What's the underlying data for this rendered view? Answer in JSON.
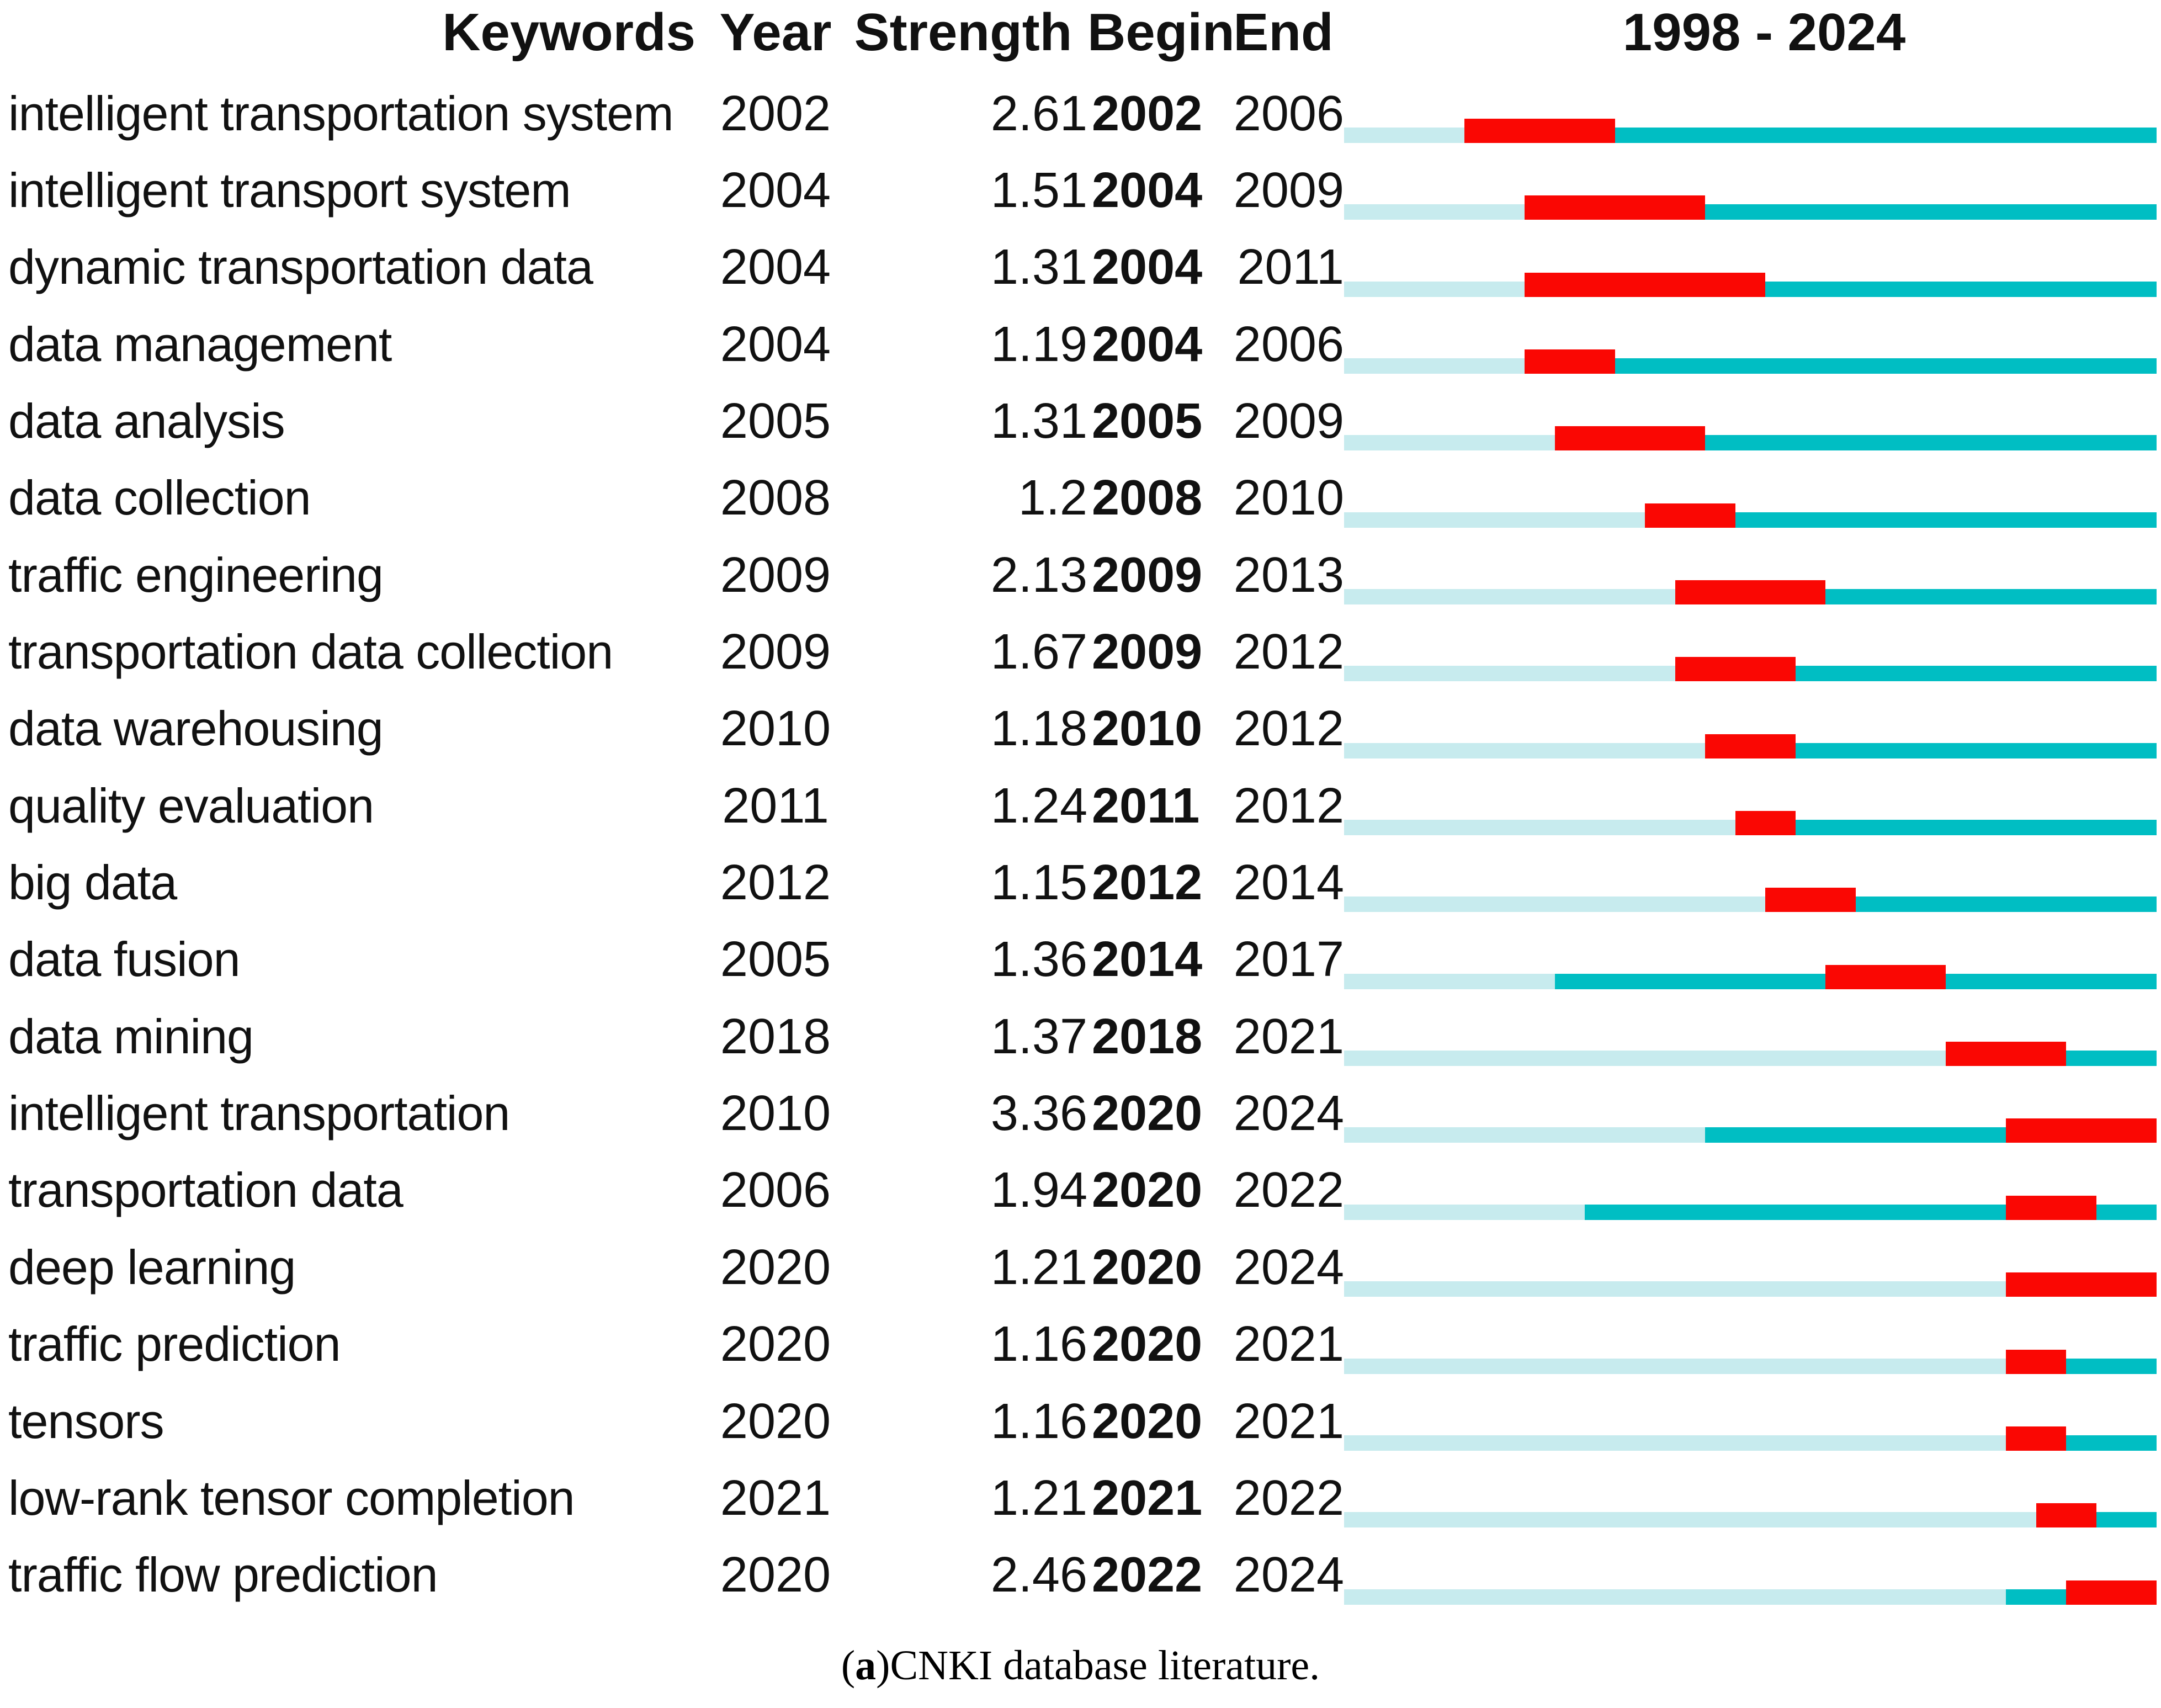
{
  "header": {
    "keywords": "Keywords",
    "year": "Year",
    "strength": "Strength",
    "begin": "Begin",
    "end": "End",
    "range": "1998 - 2024"
  },
  "caption": {
    "open": "(",
    "bold_label": "a",
    "close": ")",
    "text": " CNKI database literature."
  },
  "colors": {
    "pale": "#c7ebee",
    "active": "#00bec3",
    "burst": "#fa0703"
  },
  "chart_data": {
    "type": "burst-timeline-table",
    "title": "1998 - 2024",
    "columns": [
      "Keywords",
      "Year",
      "Strength",
      "Begin",
      "End"
    ],
    "year_axis": {
      "start": 1998,
      "end": 2024
    },
    "segment_colors": {
      "pale": "#c7ebee",
      "active": "#00bec3",
      "burst": "#fa0703"
    },
    "rows": [
      {
        "keyword": "intelligent transportation system",
        "year": 2002,
        "strength": "2.61",
        "begin": 2002,
        "end": 2006
      },
      {
        "keyword": "intelligent transport system",
        "year": 2004,
        "strength": "1.51",
        "begin": 2004,
        "end": 2009
      },
      {
        "keyword": "dynamic transportation data",
        "year": 2004,
        "strength": "1.31",
        "begin": 2004,
        "end": 2011
      },
      {
        "keyword": "data management",
        "year": 2004,
        "strength": "1.19",
        "begin": 2004,
        "end": 2006
      },
      {
        "keyword": "data analysis",
        "year": 2005,
        "strength": "1.31",
        "begin": 2005,
        "end": 2009
      },
      {
        "keyword": "data collection",
        "year": 2008,
        "strength": "1.2",
        "begin": 2008,
        "end": 2010
      },
      {
        "keyword": "traffic engineering",
        "year": 2009,
        "strength": "2.13",
        "begin": 2009,
        "end": 2013
      },
      {
        "keyword": "transportation data collection",
        "year": 2009,
        "strength": "1.67",
        "begin": 2009,
        "end": 2012
      },
      {
        "keyword": "data warehousing",
        "year": 2010,
        "strength": "1.18",
        "begin": 2010,
        "end": 2012
      },
      {
        "keyword": "quality evaluation",
        "year": 2011,
        "strength": "1.24",
        "begin": 2011,
        "end": 2012
      },
      {
        "keyword": "big data",
        "year": 2012,
        "strength": "1.15",
        "begin": 2012,
        "end": 2014
      },
      {
        "keyword": "data fusion",
        "year": 2005,
        "strength": "1.36",
        "begin": 2014,
        "end": 2017
      },
      {
        "keyword": "data mining",
        "year": 2018,
        "strength": "1.37",
        "begin": 2018,
        "end": 2021
      },
      {
        "keyword": "intelligent transportation",
        "year": 2010,
        "strength": "3.36",
        "begin": 2020,
        "end": 2024
      },
      {
        "keyword": "transportation data",
        "year": 2006,
        "strength": "1.94",
        "begin": 2020,
        "end": 2022
      },
      {
        "keyword": "deep learning",
        "year": 2020,
        "strength": "1.21",
        "begin": 2020,
        "end": 2024
      },
      {
        "keyword": "traffic prediction",
        "year": 2020,
        "strength": "1.16",
        "begin": 2020,
        "end": 2021
      },
      {
        "keyword": "tensors",
        "year": 2020,
        "strength": "1.16",
        "begin": 2020,
        "end": 2021
      },
      {
        "keyword": "low-rank tensor completion",
        "year": 2021,
        "strength": "1.21",
        "begin": 2021,
        "end": 2022
      },
      {
        "keyword": "traffic flow prediction",
        "year": 2020,
        "strength": "2.46",
        "begin": 2022,
        "end": 2024
      }
    ]
  }
}
